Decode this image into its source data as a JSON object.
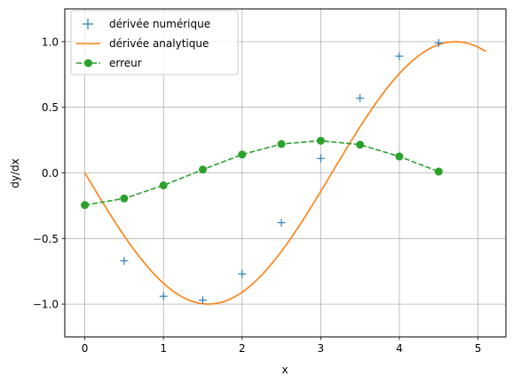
{
  "chart_data": {
    "type": "line",
    "xlabel": "x",
    "ylabel": "dy/dx",
    "xlim": [
      -0.255,
      5.355
    ],
    "ylim": [
      -1.25,
      1.25
    ],
    "grid": true,
    "legend_position": "top-left",
    "x_ticks": [
      0,
      1,
      2,
      3,
      4,
      5
    ],
    "x_tick_labels": [
      "0",
      "1",
      "2",
      "3",
      "4",
      "5"
    ],
    "y_ticks": [
      -1.0,
      -0.5,
      0.0,
      0.5,
      1.0
    ],
    "y_tick_labels": [
      "−1.0",
      "−0.5",
      "0.0",
      "0.5",
      "1.0"
    ],
    "series": [
      {
        "name": "dérivée numérique",
        "style": "plus-marker",
        "color": "#1f77b4",
        "x": [
          0.5,
          1.0,
          1.5,
          2.0,
          2.5,
          3.0,
          3.5,
          4.0,
          4.5
        ],
        "y": [
          -0.67,
          -0.94,
          -0.97,
          -0.77,
          -0.38,
          0.11,
          0.57,
          0.89,
          0.99
        ]
      },
      {
        "name": "dérivée analytique",
        "style": "solid-line",
        "color": "#ff7f0e",
        "function": "-sin(x)",
        "x_range": [
          0,
          5.1
        ]
      },
      {
        "name": "erreur",
        "style": "dashed-line-circle-marker",
        "color": "#2ca02c",
        "x": [
          0.0,
          0.5,
          1.0,
          1.5,
          2.0,
          2.5,
          3.0,
          3.5,
          4.0,
          4.5
        ],
        "y": [
          -0.245,
          -0.195,
          -0.095,
          0.025,
          0.14,
          0.22,
          0.245,
          0.215,
          0.125,
          0.01
        ]
      }
    ]
  }
}
